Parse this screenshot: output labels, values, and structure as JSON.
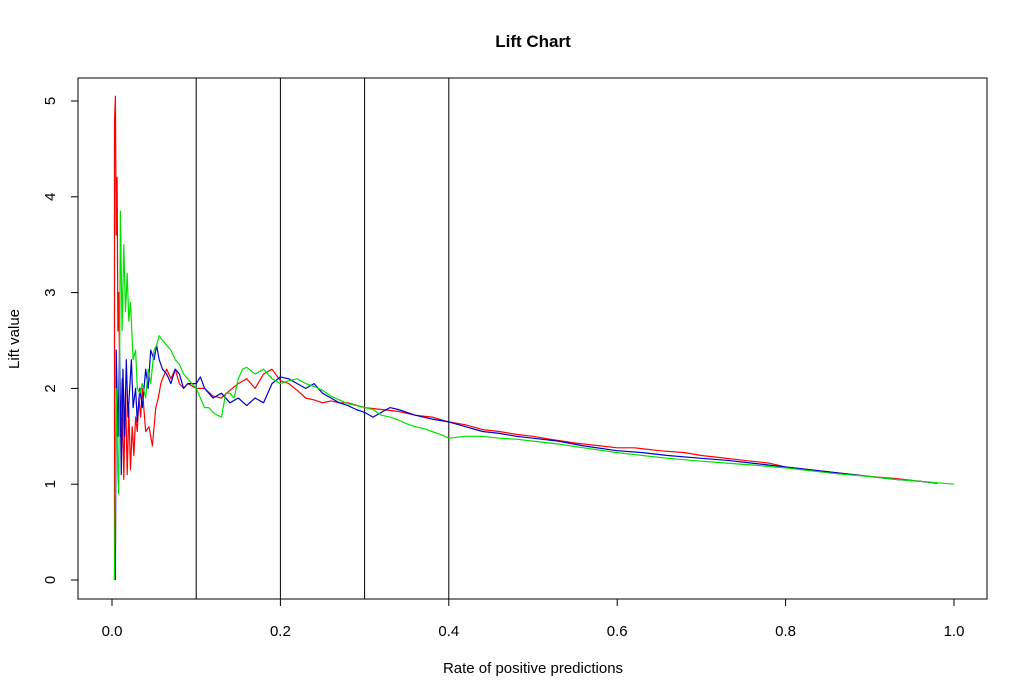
{
  "chart_data": {
    "type": "line",
    "title": "Lift Chart",
    "xlabel": "Rate of positive predictions",
    "ylabel": "Lift value",
    "xlim": [
      0,
      1
    ],
    "ylim": [
      0,
      5
    ],
    "x_ticks": [
      "0.0",
      "0.2",
      "0.4",
      "0.6",
      "0.8",
      "1.0"
    ],
    "y_ticks": [
      "0",
      "1",
      "2",
      "3",
      "4",
      "5"
    ],
    "grid": false,
    "legend": "none",
    "vlines": [
      0.1,
      0.2,
      0.3,
      0.4
    ],
    "series": [
      {
        "color": "#ff0000",
        "points": [
          [
            0.003,
            0
          ],
          [
            0.003,
            4.8
          ],
          [
            0.004,
            5.05
          ],
          [
            0.005,
            3.6
          ],
          [
            0.006,
            4.2
          ],
          [
            0.007,
            2.6
          ],
          [
            0.008,
            3.0
          ],
          [
            0.01,
            1.5
          ],
          [
            0.012,
            2.1
          ],
          [
            0.014,
            1.05
          ],
          [
            0.016,
            2.0
          ],
          [
            0.018,
            1.1
          ],
          [
            0.02,
            1.8
          ],
          [
            0.022,
            1.15
          ],
          [
            0.024,
            1.6
          ],
          [
            0.026,
            1.3
          ],
          [
            0.028,
            1.7
          ],
          [
            0.03,
            1.55
          ],
          [
            0.032,
            1.9
          ],
          [
            0.034,
            1.7
          ],
          [
            0.036,
            2.0
          ],
          [
            0.04,
            1.55
          ],
          [
            0.044,
            1.6
          ],
          [
            0.048,
            1.4
          ],
          [
            0.05,
            1.6
          ],
          [
            0.052,
            1.8
          ],
          [
            0.055,
            1.9
          ],
          [
            0.058,
            2.05
          ],
          [
            0.06,
            2.1
          ],
          [
            0.065,
            2.2
          ],
          [
            0.07,
            2.1
          ],
          [
            0.075,
            2.2
          ],
          [
            0.08,
            2.05
          ],
          [
            0.085,
            2.0
          ],
          [
            0.09,
            2.05
          ],
          [
            0.1,
            2.0
          ],
          [
            0.11,
            2.0
          ],
          [
            0.12,
            1.92
          ],
          [
            0.13,
            1.9
          ],
          [
            0.14,
            1.98
          ],
          [
            0.15,
            2.05
          ],
          [
            0.16,
            2.1
          ],
          [
            0.17,
            2.0
          ],
          [
            0.18,
            2.15
          ],
          [
            0.19,
            2.2
          ],
          [
            0.2,
            2.08
          ],
          [
            0.21,
            2.05
          ],
          [
            0.22,
            1.98
          ],
          [
            0.23,
            1.9
          ],
          [
            0.24,
            1.88
          ],
          [
            0.25,
            1.85
          ],
          [
            0.26,
            1.87
          ],
          [
            0.27,
            1.85
          ],
          [
            0.28,
            1.85
          ],
          [
            0.3,
            1.8
          ],
          [
            0.32,
            1.78
          ],
          [
            0.34,
            1.76
          ],
          [
            0.36,
            1.72
          ],
          [
            0.38,
            1.7
          ],
          [
            0.4,
            1.65
          ],
          [
            0.42,
            1.62
          ],
          [
            0.44,
            1.57
          ],
          [
            0.46,
            1.55
          ],
          [
            0.48,
            1.52
          ],
          [
            0.5,
            1.5
          ],
          [
            0.52,
            1.47
          ],
          [
            0.55,
            1.43
          ],
          [
            0.58,
            1.4
          ],
          [
            0.6,
            1.38
          ],
          [
            0.62,
            1.38
          ],
          [
            0.65,
            1.35
          ],
          [
            0.68,
            1.33
          ],
          [
            0.7,
            1.3
          ],
          [
            0.72,
            1.28
          ],
          [
            0.75,
            1.25
          ],
          [
            0.78,
            1.22
          ],
          [
            0.8,
            1.18
          ],
          [
            0.83,
            1.15
          ],
          [
            0.86,
            1.12
          ],
          [
            0.9,
            1.08
          ],
          [
            0.93,
            1.06
          ],
          [
            0.96,
            1.03
          ],
          [
            0.98,
            1.01
          ]
        ]
      },
      {
        "color": "#0000cd",
        "points": [
          [
            0.004,
            0
          ],
          [
            0.005,
            2.4
          ],
          [
            0.007,
            1.5
          ],
          [
            0.009,
            2.4
          ],
          [
            0.011,
            1.1
          ],
          [
            0.013,
            2.2
          ],
          [
            0.015,
            1.5
          ],
          [
            0.017,
            2.3
          ],
          [
            0.019,
            1.7
          ],
          [
            0.021,
            2.0
          ],
          [
            0.023,
            2.3
          ],
          [
            0.025,
            1.8
          ],
          [
            0.028,
            2.0
          ],
          [
            0.03,
            1.65
          ],
          [
            0.033,
            2.0
          ],
          [
            0.036,
            1.8
          ],
          [
            0.04,
            2.2
          ],
          [
            0.043,
            2.0
          ],
          [
            0.046,
            2.4
          ],
          [
            0.05,
            2.3
          ],
          [
            0.053,
            2.45
          ],
          [
            0.056,
            2.3
          ],
          [
            0.06,
            2.2
          ],
          [
            0.065,
            2.15
          ],
          [
            0.07,
            2.05
          ],
          [
            0.075,
            2.2
          ],
          [
            0.08,
            2.15
          ],
          [
            0.085,
            2.0
          ],
          [
            0.09,
            2.05
          ],
          [
            0.1,
            2.05
          ],
          [
            0.105,
            2.12
          ],
          [
            0.11,
            2.0
          ],
          [
            0.115,
            1.95
          ],
          [
            0.12,
            1.9
          ],
          [
            0.13,
            1.95
          ],
          [
            0.14,
            1.85
          ],
          [
            0.15,
            1.9
          ],
          [
            0.16,
            1.82
          ],
          [
            0.17,
            1.9
          ],
          [
            0.18,
            1.85
          ],
          [
            0.19,
            2.05
          ],
          [
            0.2,
            2.12
          ],
          [
            0.21,
            2.1
          ],
          [
            0.22,
            2.05
          ],
          [
            0.23,
            2.0
          ],
          [
            0.24,
            2.05
          ],
          [
            0.25,
            1.95
          ],
          [
            0.26,
            1.9
          ],
          [
            0.27,
            1.85
          ],
          [
            0.28,
            1.82
          ],
          [
            0.29,
            1.78
          ],
          [
            0.3,
            1.75
          ],
          [
            0.31,
            1.7
          ],
          [
            0.32,
            1.75
          ],
          [
            0.33,
            1.8
          ],
          [
            0.34,
            1.78
          ],
          [
            0.36,
            1.72
          ],
          [
            0.38,
            1.68
          ],
          [
            0.4,
            1.65
          ],
          [
            0.42,
            1.6
          ],
          [
            0.44,
            1.55
          ],
          [
            0.46,
            1.53
          ],
          [
            0.48,
            1.5
          ],
          [
            0.5,
            1.48
          ],
          [
            0.53,
            1.45
          ],
          [
            0.56,
            1.4
          ],
          [
            0.6,
            1.35
          ],
          [
            0.63,
            1.33
          ],
          [
            0.66,
            1.3
          ],
          [
            0.7,
            1.27
          ],
          [
            0.73,
            1.25
          ],
          [
            0.76,
            1.22
          ],
          [
            0.8,
            1.18
          ],
          [
            0.83,
            1.15
          ],
          [
            0.86,
            1.12
          ],
          [
            0.9,
            1.08
          ],
          [
            0.93,
            1.05
          ],
          [
            0.96,
            1.03
          ],
          [
            0.98,
            1.01
          ]
        ]
      },
      {
        "color": "#00e000",
        "points": [
          [
            0.003,
            0
          ],
          [
            0.005,
            2.0
          ],
          [
            0.007,
            1.1
          ],
          [
            0.008,
            0.9
          ],
          [
            0.009,
            2.2
          ],
          [
            0.01,
            3.85
          ],
          [
            0.012,
            2.6
          ],
          [
            0.014,
            3.5
          ],
          [
            0.016,
            2.8
          ],
          [
            0.018,
            3.2
          ],
          [
            0.02,
            2.7
          ],
          [
            0.022,
            2.9
          ],
          [
            0.025,
            2.3
          ],
          [
            0.028,
            2.4
          ],
          [
            0.03,
            2.0
          ],
          [
            0.033,
            1.95
          ],
          [
            0.036,
            2.05
          ],
          [
            0.04,
            1.9
          ],
          [
            0.043,
            2.2
          ],
          [
            0.046,
            2.05
          ],
          [
            0.05,
            2.4
          ],
          [
            0.053,
            2.45
          ],
          [
            0.056,
            2.55
          ],
          [
            0.06,
            2.5
          ],
          [
            0.065,
            2.45
          ],
          [
            0.07,
            2.4
          ],
          [
            0.075,
            2.3
          ],
          [
            0.08,
            2.25
          ],
          [
            0.085,
            2.15
          ],
          [
            0.09,
            2.1
          ],
          [
            0.095,
            2.05
          ],
          [
            0.1,
            2.0
          ],
          [
            0.105,
            1.9
          ],
          [
            0.11,
            1.8
          ],
          [
            0.115,
            1.8
          ],
          [
            0.12,
            1.75
          ],
          [
            0.125,
            1.72
          ],
          [
            0.13,
            1.7
          ],
          [
            0.135,
            1.95
          ],
          [
            0.14,
            1.95
          ],
          [
            0.145,
            1.9
          ],
          [
            0.15,
            2.1
          ],
          [
            0.155,
            2.2
          ],
          [
            0.16,
            2.22
          ],
          [
            0.17,
            2.15
          ],
          [
            0.18,
            2.2
          ],
          [
            0.19,
            2.1
          ],
          [
            0.2,
            2.05
          ],
          [
            0.21,
            2.08
          ],
          [
            0.22,
            2.1
          ],
          [
            0.23,
            2.05
          ],
          [
            0.24,
            2.02
          ],
          [
            0.25,
            1.98
          ],
          [
            0.26,
            1.92
          ],
          [
            0.27,
            1.88
          ],
          [
            0.28,
            1.84
          ],
          [
            0.29,
            1.82
          ],
          [
            0.3,
            1.8
          ],
          [
            0.31,
            1.78
          ],
          [
            0.32,
            1.72
          ],
          [
            0.33,
            1.7
          ],
          [
            0.34,
            1.67
          ],
          [
            0.35,
            1.63
          ],
          [
            0.36,
            1.6
          ],
          [
            0.37,
            1.58
          ],
          [
            0.38,
            1.55
          ],
          [
            0.39,
            1.52
          ],
          [
            0.4,
            1.48
          ],
          [
            0.42,
            1.5
          ],
          [
            0.44,
            1.5
          ],
          [
            0.46,
            1.48
          ],
          [
            0.48,
            1.47
          ],
          [
            0.5,
            1.45
          ],
          [
            0.53,
            1.42
          ],
          [
            0.56,
            1.38
          ],
          [
            0.6,
            1.33
          ],
          [
            0.63,
            1.3
          ],
          [
            0.66,
            1.27
          ],
          [
            0.7,
            1.24
          ],
          [
            0.73,
            1.22
          ],
          [
            0.76,
            1.2
          ],
          [
            0.8,
            1.17
          ],
          [
            0.83,
            1.14
          ],
          [
            0.86,
            1.11
          ],
          [
            0.9,
            1.08
          ],
          [
            0.93,
            1.05
          ],
          [
            0.96,
            1.03
          ],
          [
            1.0,
            1.0
          ]
        ]
      }
    ]
  }
}
